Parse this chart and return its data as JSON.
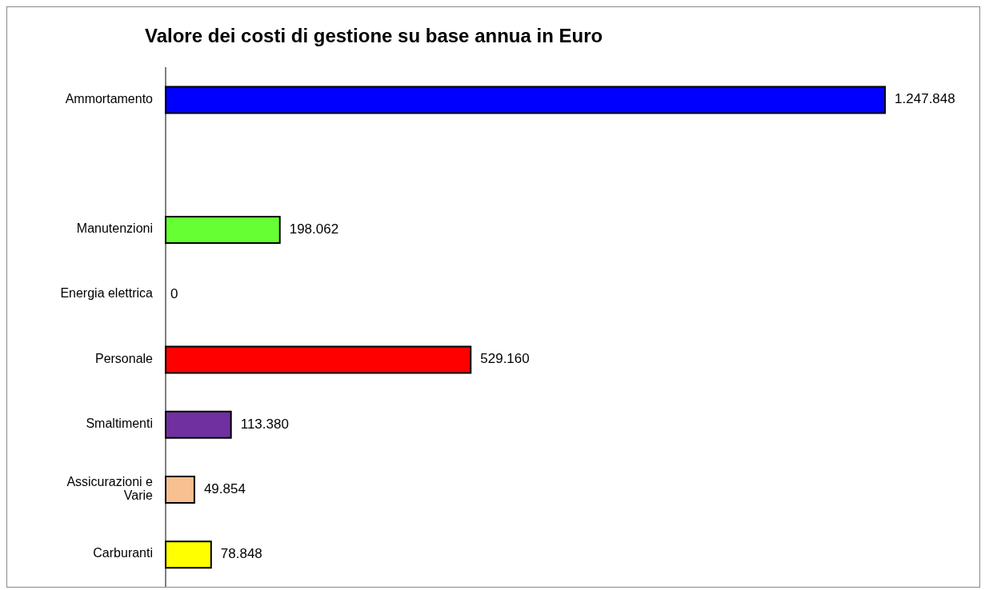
{
  "chart_data": {
    "type": "bar",
    "orientation": "horizontal",
    "title": "Valore dei costi di gestione su base annua in Euro",
    "categories": [
      "Ammortamento",
      null,
      "Manutenzioni",
      "Energia elettrica",
      "Personale",
      "Smaltimenti",
      "Assicurazioni e Varie",
      "Carburanti"
    ],
    "values": [
      1247848,
      null,
      198062,
      0,
      529160,
      113380,
      49854,
      78848
    ],
    "value_labels": [
      "1.247.848",
      null,
      "198.062",
      "0",
      "529.160",
      "113.380",
      "49.854",
      "78.848"
    ],
    "colors": [
      "#0000ff",
      null,
      "#66ff33",
      null,
      "#ff0000",
      "#7030a0",
      "#f8c090",
      "#ffff00"
    ],
    "grid": false,
    "legend": false
  }
}
